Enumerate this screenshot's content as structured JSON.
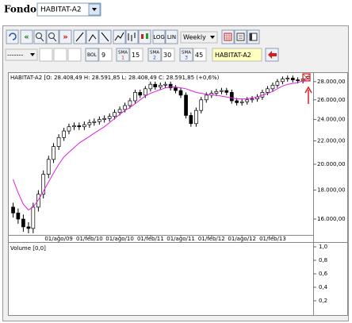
{
  "fondo": {
    "label": "Fondo:",
    "value": "HABITAT-A2"
  },
  "toolbar": {
    "log": "LOG",
    "lin": "LIN",
    "period": "Weekly",
    "style": "-------",
    "bol": {
      "label": "BOL",
      "value": 9
    },
    "sma": [
      {
        "label": "SMA",
        "index": 1,
        "period": 15
      },
      {
        "label": "SMA",
        "index": 2,
        "period": 30
      },
      {
        "label": "SMA",
        "index": 3,
        "period": 45
      }
    ],
    "symbol": "HABITAT-A2"
  },
  "chart_data": [
    {
      "type": "candlestick",
      "title": "HABITAT-A2 [O: 28.408,49  H: 28.591,85  L: 28.408,49  C: 28.591,85  (+0,6%)",
      "log_scale": true,
      "grid": false,
      "color": "#000000",
      "x": [
        "2008-11",
        "2008-12",
        "2009-01",
        "2009-02",
        "2009-03",
        "2009-04",
        "2009-05",
        "2009-06",
        "2009-07",
        "2009-08",
        "2009-09",
        "2009-10",
        "2009-11",
        "2009-12",
        "2010-01",
        "2010-02",
        "2010-03",
        "2010-04",
        "2010-05",
        "2010-06",
        "2010-07",
        "2010-08",
        "2010-09",
        "2010-10",
        "2010-11",
        "2010-12",
        "2011-01",
        "2011-02",
        "2011-03",
        "2011-04",
        "2011-05",
        "2011-06",
        "2011-07",
        "2011-08",
        "2011-09",
        "2011-10",
        "2011-11",
        "2011-12",
        "2012-01",
        "2012-02",
        "2012-03",
        "2012-04",
        "2012-05",
        "2012-06",
        "2012-07",
        "2012-08",
        "2012-09",
        "2012-10",
        "2012-11",
        "2012-12",
        "2013-01",
        "2013-02",
        "2013-03",
        "2013-04",
        "2013-05",
        "2013-06",
        "2013-07",
        "2013-08",
        "2013-09"
      ],
      "open": [
        16800,
        16400,
        16000,
        15500,
        15400,
        16800,
        17700,
        19200,
        20400,
        21500,
        22300,
        22900,
        23300,
        23400,
        23300,
        23500,
        23700,
        23800,
        24000,
        24100,
        24300,
        24700,
        25000,
        25400,
        25900,
        26800,
        26500,
        27200,
        27700,
        27400,
        27600,
        27700,
        27300,
        27000,
        26500,
        24400,
        23600,
        24900,
        26000,
        26500,
        26700,
        26900,
        27000,
        26800,
        25900,
        25700,
        25800,
        26000,
        26100,
        26300,
        26800,
        27200,
        27600,
        28000,
        28300,
        28400,
        28200,
        28100,
        28408.49
      ],
      "high": [
        17100,
        16700,
        16300,
        15800,
        17100,
        18000,
        19500,
        20700,
        21800,
        22600,
        23200,
        23600,
        23700,
        23700,
        23800,
        24000,
        24100,
        24300,
        24400,
        24600,
        25000,
        25300,
        25700,
        26200,
        27100,
        27100,
        27500,
        28000,
        28000,
        27900,
        28000,
        28000,
        27600,
        27300,
        26800,
        24700,
        25200,
        26300,
        26800,
        27000,
        27200,
        27300,
        27300,
        27100,
        26200,
        26100,
        26300,
        26400,
        26600,
        27100,
        27500,
        27900,
        28300,
        28600,
        28700,
        28700,
        28500,
        28600,
        28591.85
      ],
      "low": [
        16100,
        15700,
        15200,
        15100,
        15100,
        16500,
        17400,
        18900,
        20100,
        21200,
        22000,
        22600,
        23000,
        23000,
        23000,
        23200,
        23400,
        23500,
        23700,
        23800,
        24000,
        24400,
        24700,
        25100,
        25600,
        26200,
        26200,
        26900,
        27100,
        27100,
        27300,
        27000,
        26700,
        26200,
        24100,
        23300,
        23300,
        24600,
        25700,
        26200,
        26400,
        26600,
        26500,
        25600,
        25400,
        25400,
        25500,
        25700,
        25800,
        26000,
        26500,
        26900,
        27300,
        27700,
        28000,
        27900,
        27800,
        27800,
        28408.49
      ],
      "close": [
        16400,
        16000,
        15500,
        15400,
        16800,
        17700,
        19200,
        20400,
        21500,
        22300,
        22900,
        23300,
        23400,
        23300,
        23500,
        23700,
        23800,
        24000,
        24100,
        24300,
        24700,
        25000,
        25400,
        25900,
        26800,
        26500,
        27200,
        27700,
        27400,
        27600,
        27700,
        27300,
        27000,
        26500,
        24400,
        23600,
        24900,
        26000,
        26500,
        26700,
        26900,
        27000,
        26800,
        25900,
        25700,
        25800,
        26000,
        26100,
        26300,
        26800,
        27200,
        27600,
        28000,
        28300,
        28400,
        28200,
        28100,
        28300,
        28591.85
      ],
      "sma": {
        "color": "#e020e0",
        "values": [
          18800,
          17800,
          17000,
          16600,
          16800,
          17300,
          17900,
          18600,
          19300,
          20000,
          20600,
          21000,
          21400,
          21800,
          22100,
          22400,
          22700,
          23000,
          23300,
          23700,
          24100,
          24500,
          24900,
          25200,
          25600,
          26000,
          26400,
          26700,
          26900,
          27100,
          27300,
          27400,
          27400,
          27300,
          27200,
          27000,
          26800,
          26700,
          26600,
          26500,
          26500,
          26400,
          26300,
          26200,
          26100,
          26100,
          26100,
          26200,
          26300,
          26500,
          26700,
          26900,
          27200,
          27500,
          27700,
          27800,
          27900,
          28100,
          28300
        ]
      },
      "xlim": [
        "2008-10",
        "2013-10"
      ],
      "xticks": [
        {
          "value": "2009-08",
          "label": "01/ago/09"
        },
        {
          "value": "2010-02",
          "label": "01/feb/10"
        },
        {
          "value": "2010-08",
          "label": "01/ago/10"
        },
        {
          "value": "2011-02",
          "label": "01/feb/11"
        },
        {
          "value": "2011-08",
          "label": "01/ago/11"
        },
        {
          "value": "2012-02",
          "label": "01/feb/12"
        },
        {
          "value": "2012-08",
          "label": "01/ago/12"
        },
        {
          "value": "2013-02",
          "label": "01/feb/13"
        }
      ],
      "ylim": [
        15000,
        29000
      ],
      "yticks": [
        {
          "value": 16000,
          "label": "16.000,00"
        },
        {
          "value": 18000,
          "label": "18.000,00"
        },
        {
          "value": 20000,
          "label": "20.000,00"
        },
        {
          "value": 22000,
          "label": "22.000,00"
        },
        {
          "value": 24000,
          "label": "24.000,00"
        },
        {
          "value": 26000,
          "label": "26.000,00"
        },
        {
          "value": 28000,
          "label": "28.000,00"
        }
      ]
    },
    {
      "type": "bar",
      "title": "Volume [0,0]",
      "ylim": [
        0,
        1
      ],
      "yticks": [
        {
          "value": 0.2,
          "label": "0,2"
        },
        {
          "value": 0.4,
          "label": "0,4"
        },
        {
          "value": 0.6,
          "label": "0,6"
        },
        {
          "value": 0.8,
          "label": "0,8"
        },
        {
          "value": 1,
          "label": "1,0"
        }
      ]
    }
  ]
}
